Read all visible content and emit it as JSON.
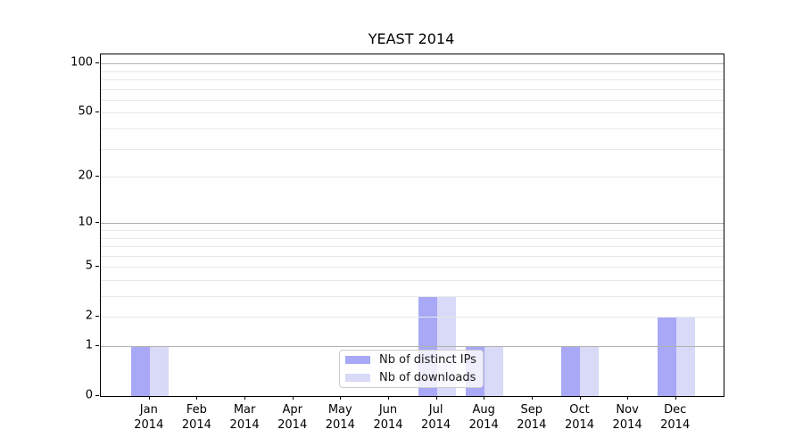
{
  "title": "YEAST 2014",
  "colors": {
    "distinct_ips_bar": "#a8a8f6",
    "downloads_bar": "#d9d9f8",
    "grid_major": "#b2b2b2",
    "grid_minor": "#e9e9e9",
    "axis_line": "#000000",
    "legend_border": "#cccccc"
  },
  "legend": {
    "entries": [
      {
        "key": "distinct_ips",
        "label": "Nb of distinct IPs"
      },
      {
        "key": "downloads",
        "label": "Nb of downloads"
      }
    ]
  },
  "y_axis": {
    "tick_values": [
      0,
      1,
      2,
      5,
      10,
      20,
      50,
      100
    ],
    "major_grid_values": [
      1,
      10,
      100
    ],
    "minor_grid_values": [
      2,
      3,
      4,
      5,
      6,
      7,
      8,
      9,
      20,
      30,
      40,
      50,
      60,
      70,
      80,
      90
    ]
  },
  "x_axis": {
    "month_labels": [
      "Jan",
      "Feb",
      "Mar",
      "Apr",
      "May",
      "Jun",
      "Jul",
      "Aug",
      "Sep",
      "Oct",
      "Nov",
      "Dec"
    ],
    "year_label": "2014"
  },
  "chart_data": {
    "type": "bar",
    "title": "YEAST 2014",
    "categories": [
      "Jan 2014",
      "Feb 2014",
      "Mar 2014",
      "Apr 2014",
      "May 2014",
      "Jun 2014",
      "Jul 2014",
      "Aug 2014",
      "Sep 2014",
      "Oct 2014",
      "Nov 2014",
      "Dec 2014"
    ],
    "series": [
      {
        "name": "Nb of distinct IPs",
        "values": [
          1,
          0,
          0,
          0,
          0,
          0,
          3,
          1,
          0,
          1,
          0,
          2
        ]
      },
      {
        "name": "Nb of downloads",
        "values": [
          1,
          0,
          0,
          0,
          0,
          0,
          3,
          1,
          0,
          1,
          0,
          2
        ]
      }
    ],
    "xlabel": "",
    "ylabel": "",
    "y_scale": "log1p",
    "y_ticks": [
      0,
      1,
      2,
      5,
      10,
      20,
      50,
      100
    ],
    "ylim": [
      0,
      115
    ],
    "grid": true,
    "legend_position": "inside lower center"
  }
}
